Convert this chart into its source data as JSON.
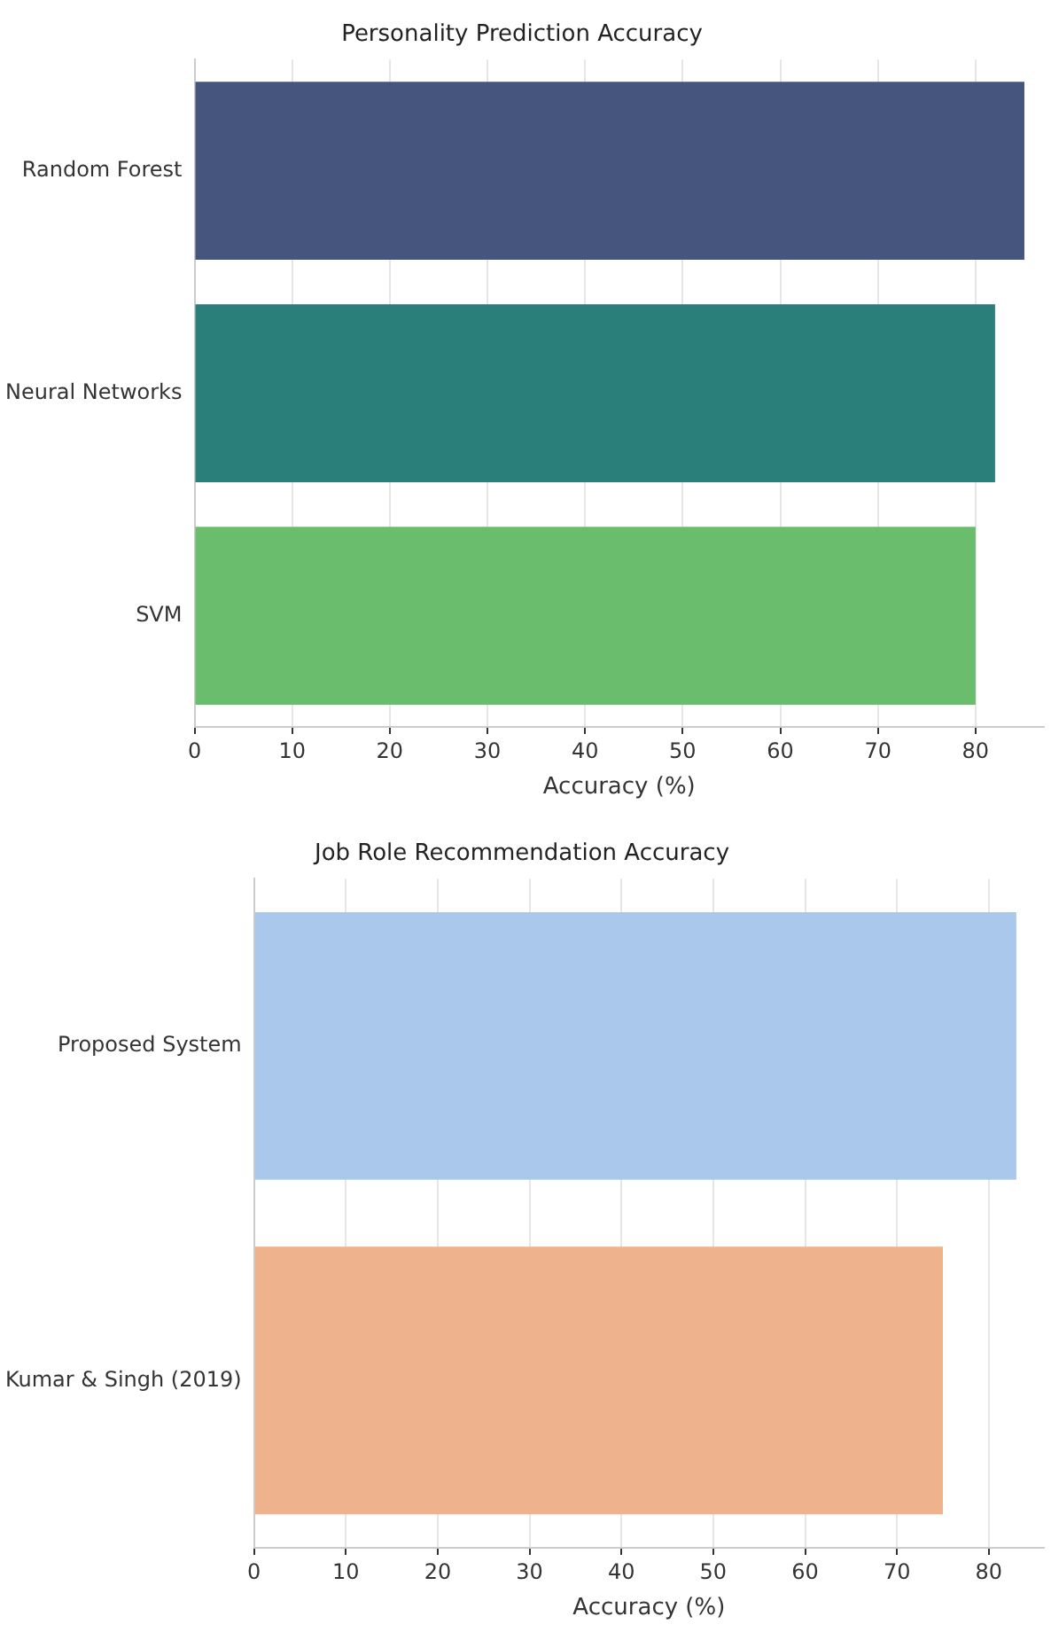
{
  "chart_data": [
    {
      "type": "bar",
      "orientation": "horizontal",
      "title": "Personality Prediction Accuracy",
      "xlabel": "Accuracy (%)",
      "categories": [
        "Random Forest",
        "Neural Networks",
        "SVM"
      ],
      "values": [
        85,
        82,
        80
      ],
      "colors": [
        "#46557e",
        "#2a7f7a",
        "#6abd6c"
      ],
      "xlim": [
        0,
        87
      ],
      "xticks": [
        0,
        10,
        20,
        30,
        40,
        50,
        60,
        70,
        80
      ],
      "grid": "x",
      "legend": false
    },
    {
      "type": "bar",
      "orientation": "horizontal",
      "title": "Job Role Recommendation Accuracy",
      "xlabel": "Accuracy (%)",
      "categories": [
        "Proposed System",
        "Kumar & Singh (2019)"
      ],
      "values": [
        83,
        75
      ],
      "colors": [
        "#aac8ec",
        "#eeb38d"
      ],
      "xlim": [
        0,
        86
      ],
      "xticks": [
        0,
        10,
        20,
        30,
        40,
        50,
        60,
        70,
        80
      ],
      "grid": "x",
      "legend": false
    }
  ]
}
